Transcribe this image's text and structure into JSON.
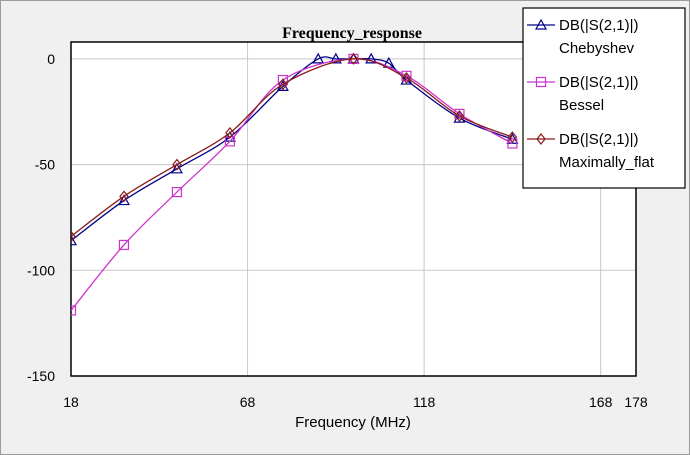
{
  "chart_data": {
    "type": "line",
    "title": "Frequency_response",
    "xlabel": "Frequency (MHz)",
    "ylabel": "",
    "xlim": [
      18,
      178
    ],
    "ylim": [
      -150,
      8
    ],
    "xticks": [
      "18",
      "68",
      "118",
      "168",
      "178"
    ],
    "xtick_values": [
      18,
      68,
      118,
      168,
      178
    ],
    "yticks": [
      "0",
      "-50",
      "-100",
      "-150"
    ],
    "ytick_values": [
      0,
      -50,
      -100,
      -150
    ],
    "grid": true,
    "legend_position": "top-right",
    "series": [
      {
        "name": "DB(|S(2,1)|)\nChebyshev",
        "legend_line1": "DB(|S(2,1)|)",
        "legend_line2": "Chebyshev",
        "color": "#00008b",
        "marker": "triangle",
        "x": [
          18,
          33,
          48,
          63,
          78,
          88,
          93,
          98,
          103,
          108,
          113,
          128,
          143
        ],
        "y": [
          -86,
          -67,
          -52,
          -37,
          -13,
          0,
          0,
          0,
          0,
          -2,
          -10,
          -28,
          -38
        ]
      },
      {
        "name": "DB(|S(2,1)|)\nBessel",
        "legend_line1": "DB(|S(2,1)|)",
        "legend_line2": "Bessel",
        "color": "#cc33cc",
        "marker": "square",
        "x": [
          18,
          33,
          48,
          63,
          78,
          98,
          113,
          128,
          143
        ],
        "y": [
          -119,
          -88,
          -63,
          -39,
          -10,
          0,
          -8,
          -26,
          -40
        ]
      },
      {
        "name": "DB(|S(2,1)|)\nMaximally_flat",
        "legend_line1": "DB(|S(2,1)|)",
        "legend_line2": "Maximally_flat",
        "color": "#8b1a1a",
        "marker": "diamond",
        "x": [
          18,
          33,
          48,
          63,
          78,
          98,
          113,
          128,
          143
        ],
        "y": [
          -84,
          -65,
          -50,
          -35,
          -12,
          0,
          -9,
          -27,
          -37
        ]
      }
    ]
  }
}
